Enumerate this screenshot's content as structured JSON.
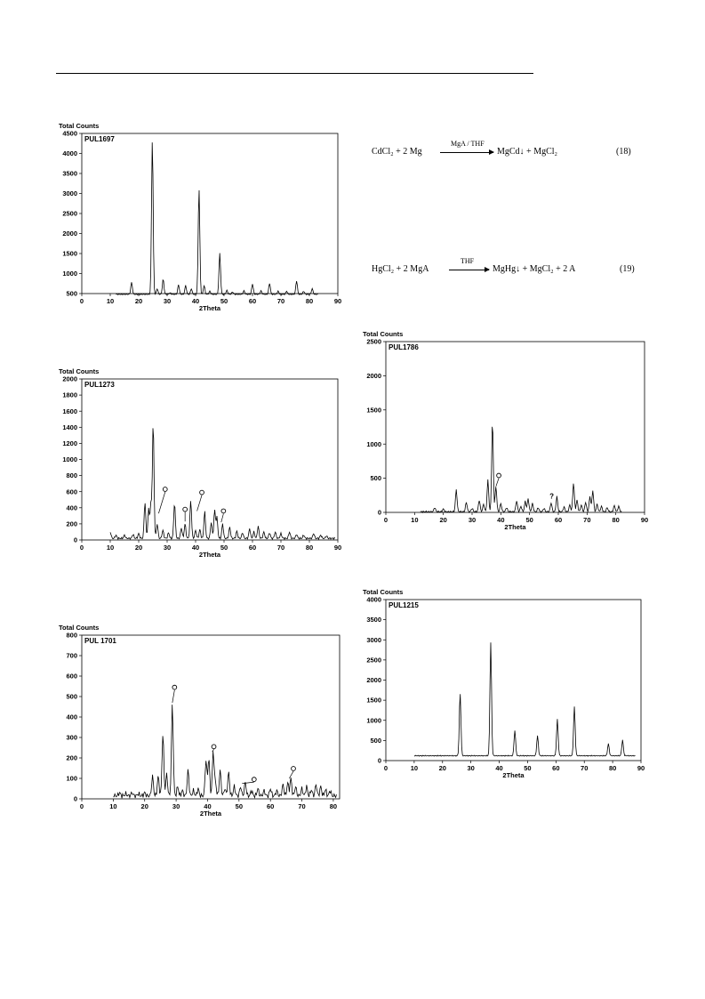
{
  "equations": [
    {
      "lhs": "CdCl₂ + 2 Mg",
      "label": "MgA / THF",
      "rhs": "MgCd↓ + MgCl₂",
      "number": "(18)"
    },
    {
      "lhs": "HgCl₂ + 2 MgA",
      "label": "THF",
      "rhs": "MgHg↓ + MgCl₂ + 2 A",
      "number": "(19)"
    }
  ],
  "chart_data": [
    {
      "type": "line",
      "sample": "PUL1697",
      "ylabel": "Total Counts",
      "xlabel": "2Theta",
      "xlim": [
        0,
        90
      ],
      "ylim": [
        500,
        4500
      ],
      "xticks": [
        0,
        10,
        20,
        30,
        40,
        50,
        60,
        70,
        80,
        90
      ],
      "yticks": [
        500,
        1000,
        1500,
        2000,
        2500,
        3000,
        3500,
        4000,
        4500
      ],
      "x0": 12,
      "x1": 83,
      "baseline": 480,
      "peaks": [
        [
          17.5,
          780
        ],
        [
          24.8,
          4350
        ],
        [
          26.5,
          620
        ],
        [
          28.6,
          860
        ],
        [
          31,
          520
        ],
        [
          34,
          720
        ],
        [
          36.5,
          700
        ],
        [
          38.5,
          620
        ],
        [
          41.2,
          3120
        ],
        [
          43,
          700
        ],
        [
          45,
          560
        ],
        [
          48.5,
          1500
        ],
        [
          51,
          580
        ],
        [
          53,
          540
        ],
        [
          57,
          570
        ],
        [
          60,
          740
        ],
        [
          63,
          570
        ],
        [
          66,
          760
        ],
        [
          69,
          560
        ],
        [
          72,
          560
        ],
        [
          75.5,
          820
        ],
        [
          78,
          560
        ],
        [
          81,
          620
        ]
      ],
      "markers": []
    },
    {
      "type": "line",
      "sample": "PUL1273",
      "ylabel": "Total Counts",
      "xlabel": "2Theta",
      "xlim": [
        0,
        90
      ],
      "ylim": [
        0,
        2000
      ],
      "xticks": [
        0,
        10,
        20,
        30,
        40,
        50,
        60,
        70,
        80,
        90
      ],
      "yticks": [
        0,
        200,
        400,
        600,
        800,
        1000,
        1200,
        1400,
        1600,
        1800,
        2000
      ],
      "x0": 10,
      "x1": 89,
      "baseline": 20,
      "peaks": [
        [
          10,
          100
        ],
        [
          12,
          60
        ],
        [
          15,
          60
        ],
        [
          18,
          70
        ],
        [
          20,
          80
        ],
        [
          22.2,
          470
        ],
        [
          23.5,
          380
        ],
        [
          24.3,
          450
        ],
        [
          25.1,
          1450
        ],
        [
          26.5,
          200
        ],
        [
          28.5,
          120
        ],
        [
          30.5,
          90
        ],
        [
          32.6,
          460
        ],
        [
          35,
          150
        ],
        [
          36.3,
          200
        ],
        [
          38.3,
          490
        ],
        [
          40,
          120
        ],
        [
          41.5,
          130
        ],
        [
          43.2,
          350
        ],
        [
          45.5,
          220
        ],
        [
          46.7,
          370
        ],
        [
          47.5,
          280
        ],
        [
          49.5,
          200
        ],
        [
          52,
          160
        ],
        [
          54.5,
          110
        ],
        [
          56.5,
          90
        ],
        [
          59,
          140
        ],
        [
          60.5,
          100
        ],
        [
          62,
          170
        ],
        [
          64,
          100
        ],
        [
          66,
          90
        ],
        [
          68,
          100
        ],
        [
          70,
          80
        ],
        [
          73,
          100
        ],
        [
          75.5,
          70
        ],
        [
          78,
          60
        ],
        [
          81.5,
          80
        ],
        [
          84,
          60
        ],
        [
          86,
          50
        ]
      ],
      "markers": [
        {
          "x": 27,
          "y": 330,
          "lx": 29.3,
          "ly": 630,
          "t": "o"
        },
        {
          "x": 36.3,
          "y": 230,
          "lx": 36.3,
          "ly": 380,
          "t": "o"
        },
        {
          "x": 40.5,
          "y": 360,
          "lx": 42.2,
          "ly": 590,
          "t": "o"
        },
        {
          "x": 49,
          "y": 220,
          "lx": 49.8,
          "ly": 360,
          "t": "o"
        }
      ]
    },
    {
      "type": "line",
      "sample": "PUL 1701",
      "ylabel": "Total Counts",
      "xlabel": "2Theta",
      "xlim": [
        0,
        82
      ],
      "ylim": [
        0,
        800
      ],
      "xticks": [
        0,
        10,
        20,
        30,
        40,
        50,
        60,
        70,
        80
      ],
      "yticks": [
        0,
        100,
        200,
        300,
        400,
        500,
        600,
        700,
        800
      ],
      "x0": 10,
      "x1": 81,
      "baseline": 15,
      "peaks": [
        [
          12,
          30
        ],
        [
          14,
          25
        ],
        [
          16,
          30
        ],
        [
          18,
          25
        ],
        [
          20,
          30
        ],
        [
          22.5,
          110
        ],
        [
          24.3,
          110
        ],
        [
          25.8,
          320
        ],
        [
          27,
          120
        ],
        [
          28.8,
          460
        ],
        [
          30.5,
          60
        ],
        [
          32,
          40
        ],
        [
          33.8,
          140
        ],
        [
          35.5,
          40
        ],
        [
          37,
          50
        ],
        [
          39.5,
          190
        ],
        [
          40.4,
          200
        ],
        [
          41.8,
          230
        ],
        [
          42.5,
          80
        ],
        [
          44,
          140
        ],
        [
          45.5,
          50
        ],
        [
          46.7,
          130
        ],
        [
          48.5,
          60
        ],
        [
          50.5,
          60
        ],
        [
          52,
          80
        ],
        [
          54,
          40
        ],
        [
          56,
          50
        ],
        [
          58,
          40
        ],
        [
          60,
          50
        ],
        [
          62,
          40
        ],
        [
          64,
          70
        ],
        [
          65.5,
          80
        ],
        [
          66.5,
          100
        ],
        [
          68,
          60
        ],
        [
          70,
          50
        ],
        [
          71.5,
          60
        ],
        [
          73,
          45
        ],
        [
          74.5,
          70
        ],
        [
          76,
          60
        ],
        [
          77.5,
          45
        ],
        [
          79,
          40
        ]
      ],
      "markers": [
        {
          "x": 28.8,
          "y": 470,
          "lx": 29.5,
          "ly": 545,
          "t": "o"
        },
        {
          "x": 41.5,
          "y": 230,
          "lx": 42,
          "ly": 255,
          "t": "o"
        },
        {
          "x": 51,
          "y": 75,
          "lx": 54.8,
          "ly": 95,
          "t": "o"
        },
        {
          "x": 66,
          "y": 100,
          "lx": 67.3,
          "ly": 148,
          "t": "o"
        }
      ]
    },
    {
      "type": "line",
      "sample": "PUL1786",
      "ylabel": "Total Counts",
      "xlabel": "2Theta",
      "xlim": [
        0,
        90
      ],
      "ylim": [
        0,
        2500
      ],
      "xticks": [
        0,
        10,
        20,
        30,
        40,
        50,
        60,
        70,
        80,
        90
      ],
      "yticks": [
        0,
        500,
        1000,
        1500,
        2000,
        2500
      ],
      "x0": 12,
      "x1": 82,
      "baseline": 10,
      "peaks": [
        [
          17,
          70
        ],
        [
          20,
          50
        ],
        [
          24.5,
          330
        ],
        [
          28,
          150
        ],
        [
          30,
          60
        ],
        [
          32.5,
          180
        ],
        [
          34,
          120
        ],
        [
          35.5,
          470
        ],
        [
          37.1,
          1330
        ],
        [
          38.3,
          380
        ],
        [
          40,
          130
        ],
        [
          42,
          70
        ],
        [
          45.5,
          170
        ],
        [
          47,
          90
        ],
        [
          48.5,
          160
        ],
        [
          49.5,
          200
        ],
        [
          51,
          130
        ],
        [
          53,
          70
        ],
        [
          55,
          60
        ],
        [
          57.5,
          140
        ],
        [
          59.5,
          230
        ],
        [
          62,
          80
        ],
        [
          64,
          110
        ],
        [
          65.3,
          430
        ],
        [
          66.5,
          180
        ],
        [
          68,
          110
        ],
        [
          69.5,
          150
        ],
        [
          71,
          230
        ],
        [
          72,
          320
        ],
        [
          73.5,
          120
        ],
        [
          75,
          90
        ],
        [
          77,
          70
        ],
        [
          79.5,
          100
        ],
        [
          81,
          90
        ]
      ],
      "markers": [
        {
          "x": 38.3,
          "y": 380,
          "lx": 39.3,
          "ly": 540,
          "t": "o"
        },
        {
          "x": 57.7,
          "y": 180,
          "lx": 57.7,
          "ly": 200,
          "t": "?"
        }
      ]
    },
    {
      "type": "line",
      "sample": "PUL1215",
      "ylabel": "Total Counts",
      "xlabel": "2Theta",
      "xlim": [
        0,
        90
      ],
      "ylim": [
        0,
        4000
      ],
      "xticks": [
        0,
        10,
        20,
        30,
        40,
        50,
        60,
        70,
        80,
        90
      ],
      "yticks": [
        0,
        500,
        1000,
        1500,
        2000,
        2500,
        3000,
        3500,
        4000
      ],
      "x0": 10,
      "x1": 88,
      "baseline": 120,
      "peaks": [
        [
          26.2,
          1680
        ],
        [
          37,
          2930
        ],
        [
          45.5,
          750
        ],
        [
          53.5,
          620
        ],
        [
          60.5,
          1020
        ],
        [
          66.5,
          1340
        ],
        [
          78.5,
          420
        ],
        [
          83.5,
          510
        ]
      ],
      "markers": []
    }
  ]
}
